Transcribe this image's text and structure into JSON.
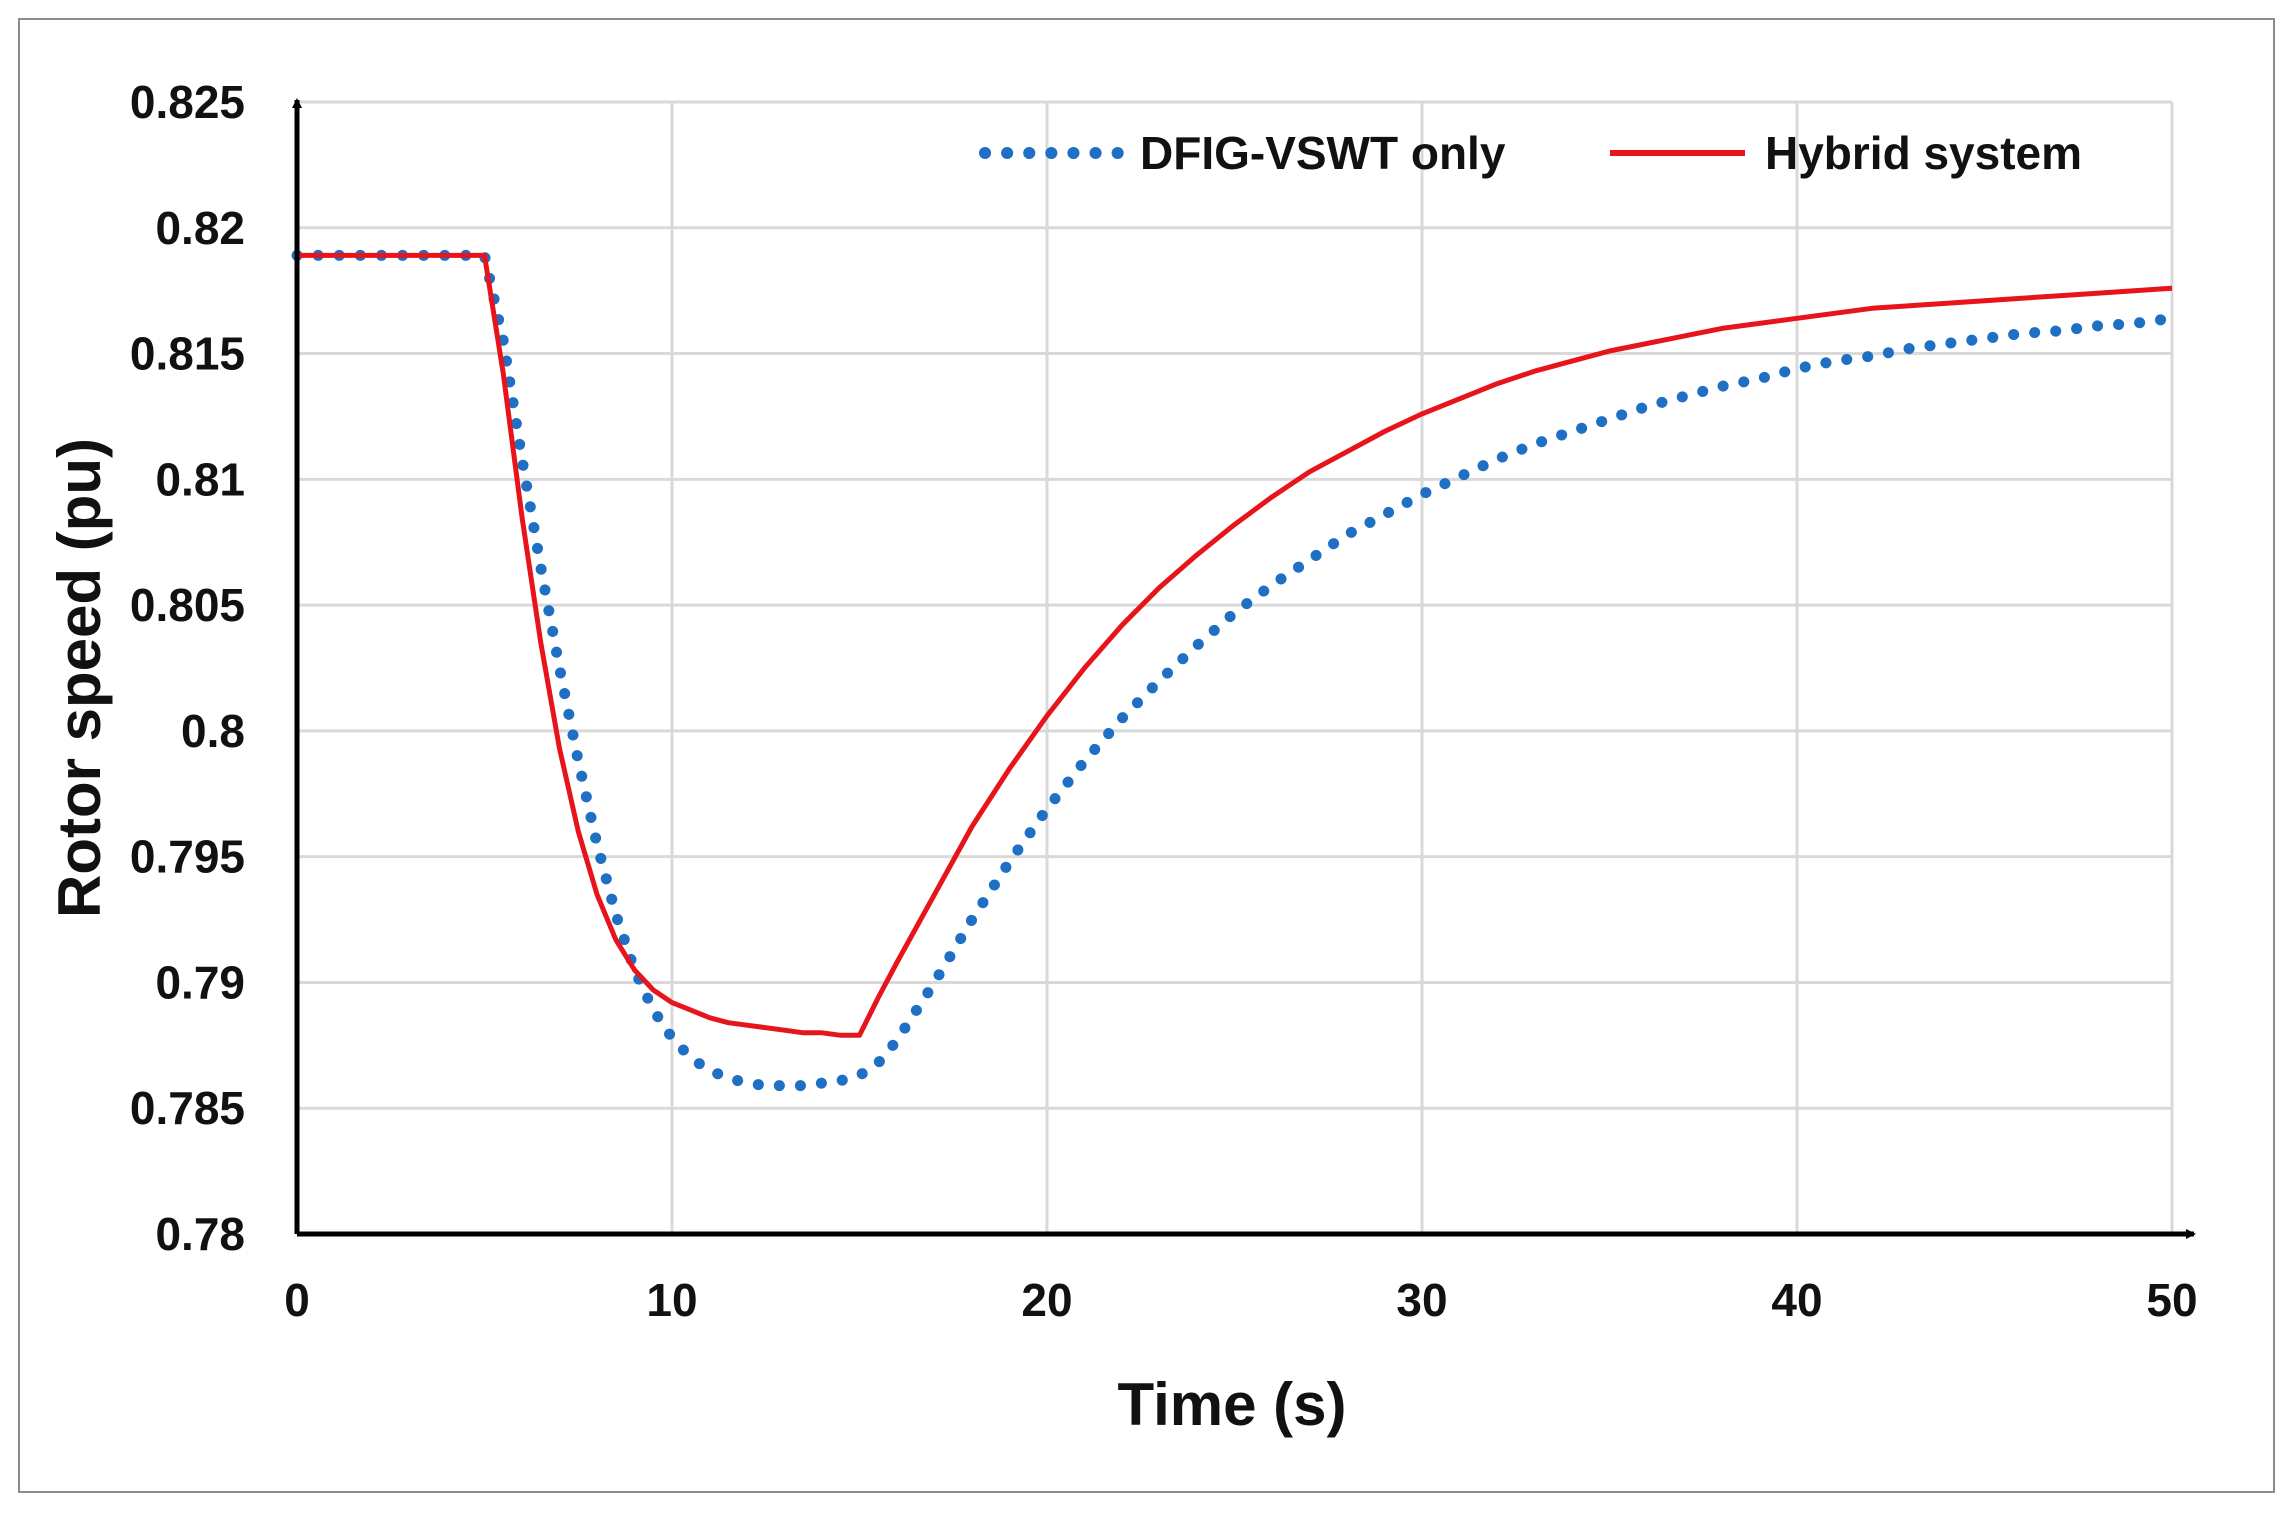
{
  "chart_data": {
    "type": "line",
    "title": "",
    "xlabel": "Time (s)",
    "ylabel": "Rotor speed (pu)",
    "xlim": [
      0,
      50
    ],
    "ylim": [
      0.78,
      0.825
    ],
    "xticks": [
      0,
      10,
      20,
      30,
      40,
      50
    ],
    "xtick_labels": [
      "0",
      "10",
      "20",
      "30",
      "40",
      "50"
    ],
    "yticks": [
      0.78,
      0.785,
      0.79,
      0.795,
      0.8,
      0.805,
      0.81,
      0.815,
      0.82,
      0.825
    ],
    "ytick_labels": [
      "0.78",
      "0.785",
      "0.79",
      "0.795",
      "0.8",
      "0.805",
      "0.81",
      "0.815",
      "0.82",
      "0.825"
    ],
    "grid": true,
    "legend_position": "top-right",
    "series": [
      {
        "name": "DFIG-VSWT only",
        "style": "dotted",
        "color": "#1f6fc5",
        "x": [
          0,
          5,
          5.5,
          6,
          6.5,
          7,
          7.5,
          8,
          8.5,
          9,
          9.5,
          10,
          10.5,
          11,
          11.5,
          12,
          12.5,
          13,
          13.5,
          14,
          14.5,
          15,
          15.5,
          16,
          17,
          18,
          19,
          20,
          21,
          22,
          23,
          24,
          25,
          26,
          27,
          28,
          29,
          30,
          31,
          32,
          33,
          34,
          35,
          36,
          37,
          38,
          39,
          40,
          41,
          42,
          43,
          44,
          45,
          46,
          47,
          48,
          49,
          50
        ],
        "y": [
          0.8189,
          0.8189,
          0.8155,
          0.8108,
          0.8065,
          0.8025,
          0.7988,
          0.7955,
          0.7927,
          0.7905,
          0.7889,
          0.7878,
          0.787,
          0.7865,
          0.7862,
          0.786,
          0.7859,
          0.7859,
          0.7859,
          0.786,
          0.7861,
          0.7863,
          0.7868,
          0.7877,
          0.79,
          0.7925,
          0.7948,
          0.7969,
          0.7988,
          0.8005,
          0.802,
          0.8034,
          0.8047,
          0.8058,
          0.8068,
          0.8078,
          0.8086,
          0.8094,
          0.8101,
          0.8108,
          0.8114,
          0.8119,
          0.8124,
          0.8129,
          0.8133,
          0.8137,
          0.814,
          0.8144,
          0.8147,
          0.8149,
          0.8152,
          0.8154,
          0.8156,
          0.8158,
          0.8159,
          0.8161,
          0.8162,
          0.8164
        ]
      },
      {
        "name": "Hybrid system",
        "style": "solid",
        "color": "#e8141b",
        "x": [
          0,
          5,
          5.5,
          6,
          6.5,
          7,
          7.5,
          8,
          8.5,
          9,
          9.5,
          10,
          10.5,
          11,
          11.5,
          12,
          12.5,
          13,
          13.5,
          14,
          14.5,
          15,
          15.5,
          16,
          17,
          18,
          19,
          20,
          21,
          22,
          23,
          24,
          25,
          26,
          27,
          28,
          29,
          30,
          31,
          32,
          33,
          34,
          35,
          36,
          37,
          38,
          39,
          40,
          41,
          42,
          43,
          44,
          45,
          46,
          47,
          48,
          49,
          50
        ],
        "y": [
          0.8189,
          0.8189,
          0.8142,
          0.8085,
          0.8035,
          0.7993,
          0.796,
          0.7935,
          0.7917,
          0.7905,
          0.7897,
          0.7892,
          0.7889,
          0.7886,
          0.7884,
          0.7883,
          0.7882,
          0.7881,
          0.788,
          0.788,
          0.7879,
          0.7879,
          0.7894,
          0.7908,
          0.7935,
          0.7962,
          0.7985,
          0.8006,
          0.8025,
          0.8042,
          0.8057,
          0.807,
          0.8082,
          0.8093,
          0.8103,
          0.8111,
          0.8119,
          0.8126,
          0.8132,
          0.8138,
          0.8143,
          0.8147,
          0.8151,
          0.8154,
          0.8157,
          0.816,
          0.8162,
          0.8164,
          0.8166,
          0.8168,
          0.8169,
          0.817,
          0.8171,
          0.8172,
          0.8173,
          0.8174,
          0.8175,
          0.8176
        ]
      }
    ]
  }
}
